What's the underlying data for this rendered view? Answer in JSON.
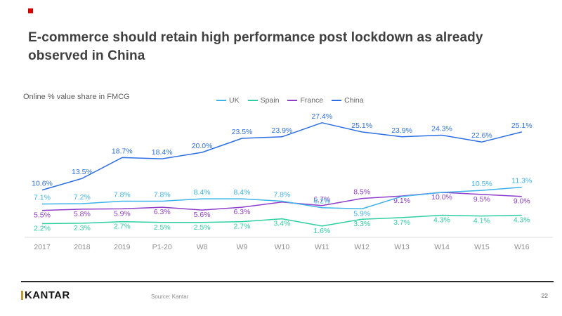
{
  "slide": {
    "title": "E-commerce should retain high performance post lockdown as already observed in China",
    "note": "Online % value share in FMCG",
    "source": "Source: Kantar",
    "page_number": "22",
    "logo_text": "KANTAR",
    "accent_color": "#d40000"
  },
  "chart_data": {
    "type": "line",
    "title": "Online % value share in FMCG",
    "unit": "%",
    "xlabel": "",
    "ylabel": "Online % value share in FMCG",
    "ylim": [
      0,
      30
    ],
    "grid": false,
    "legend_position": "top-center",
    "categories": [
      "2017",
      "2018",
      "2019",
      "P1-20",
      "W8",
      "W9",
      "W10",
      "W11",
      "W12",
      "W13",
      "W14",
      "W15",
      "W16"
    ],
    "series": [
      {
        "name": "UK",
        "color": "#3eb3ea",
        "values": [
          7.1,
          7.2,
          7.8,
          7.8,
          8.4,
          8.4,
          7.8,
          6.2,
          5.9,
          9.0,
          10.0,
          10.5,
          11.3
        ],
        "labels": [
          "7.1%",
          "7.2%",
          "7.8%",
          "7.8%",
          "8.4%",
          "8.4%",
          "7.8%",
          "6.2%",
          "5.9%",
          "",
          "",
          "10.5%",
          "11.3%"
        ]
      },
      {
        "name": "Spain",
        "color": "#2dcfa2",
        "values": [
          2.2,
          2.3,
          2.7,
          2.5,
          2.5,
          2.7,
          3.4,
          1.6,
          3.3,
          3.7,
          4.3,
          4.1,
          4.3
        ],
        "labels": [
          "2.2%",
          "2.3%",
          "2.7%",
          "2.5%",
          "2.5%",
          "2.7%",
          "3.4%",
          "1.6%",
          "3.3%",
          "3.7%",
          "4.3%",
          "4.1%",
          "4.3%"
        ]
      },
      {
        "name": "France",
        "color": "#8e3ec9",
        "values": [
          5.5,
          5.8,
          5.9,
          6.3,
          5.6,
          6.3,
          7.6,
          6.7,
          8.5,
          9.1,
          10.0,
          9.5,
          9.0
        ],
        "labels": [
          "5.5%",
          "5.8%",
          "5.9%",
          "6.3%",
          "5.6%",
          "6.3%",
          "",
          "6.7%",
          "8.5%",
          "9.1%",
          "10.0%",
          "9.5%",
          "9.0%"
        ]
      },
      {
        "name": "China",
        "color": "#2d6fe3",
        "values": [
          10.6,
          13.5,
          18.7,
          18.4,
          20.0,
          23.5,
          23.9,
          27.4,
          25.1,
          23.9,
          24.3,
          22.6,
          25.1
        ],
        "labels": [
          "10.6%",
          "13.5%",
          "18.7%",
          "18.4%",
          "20.0%",
          "23.5%",
          "23.9%",
          "27.4%",
          "25.1%",
          "23.9%",
          "24.3%",
          "22.6%",
          "25.1%"
        ]
      }
    ]
  }
}
